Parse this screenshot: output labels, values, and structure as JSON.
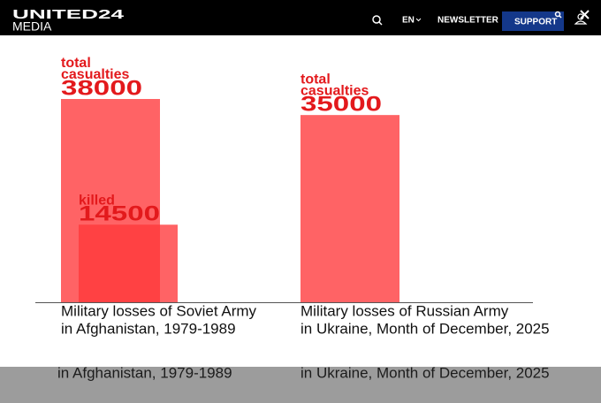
{
  "header": {
    "logo_top": "UNITED24",
    "logo_bottom": "MEDIA",
    "language": "EN",
    "newsletter": "NEWSLETTER",
    "support": "SUPPORT"
  },
  "chart_data": {
    "type": "bar",
    "ylim": [
      0,
      38000
    ],
    "groups": [
      {
        "caption": [
          "Military losses of Soviet Army",
          "in Afghanistan, 1979-1989"
        ],
        "bars": [
          {
            "label": [
              "total",
              "casualties"
            ],
            "value": 38000
          },
          {
            "label": [
              "killed"
            ],
            "value": 14500
          }
        ]
      },
      {
        "caption": [
          "Military losses of Russian Army",
          "in Ukraine, Month of December, 2025"
        ],
        "bars": [
          {
            "label": [
              "total",
              "casualties"
            ],
            "value": 35000
          }
        ]
      }
    ]
  },
  "overlay": {
    "captions": [
      "in Afghanistan, 1979-1989",
      "in Ukraine, Month of December, 2025"
    ]
  }
}
